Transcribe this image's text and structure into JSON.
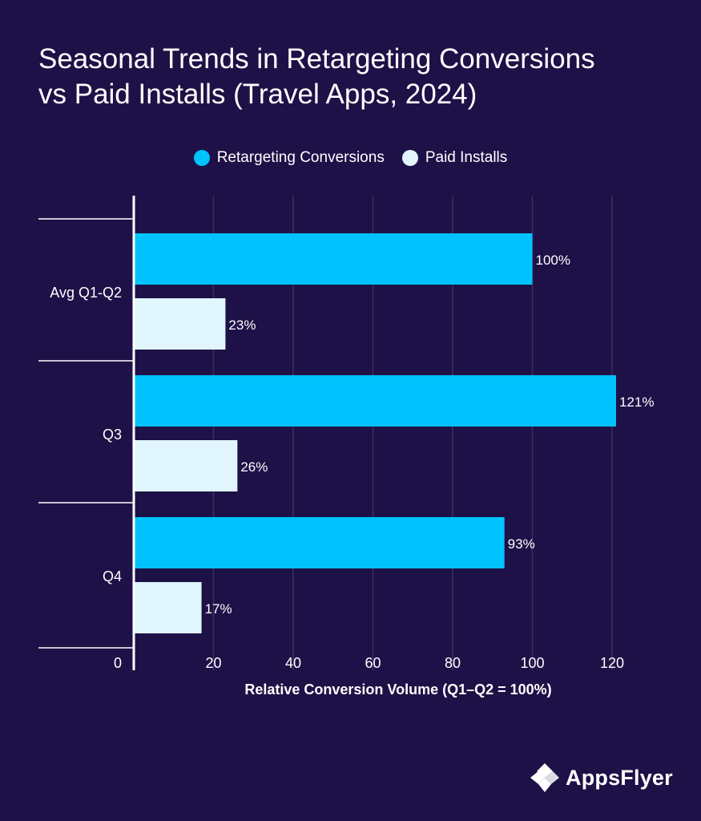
{
  "colors": {
    "background": "#1e1147",
    "grid": "#3a2f63",
    "axis": "#ffffff"
  },
  "chart_data": {
    "type": "bar",
    "orientation": "horizontal",
    "title_lines": [
      "Seasonal Trends in Retargeting Conversions",
      "vs Paid Installs (Travel Apps, 2024)"
    ],
    "categories": [
      "Avg Q1-Q2",
      "Q3",
      "Q4"
    ],
    "series": [
      {
        "name": "Retargeting Conversions",
        "color": "#00c2ff",
        "values": [
          100,
          121,
          93
        ],
        "labels": [
          "100%",
          "121%",
          "93%"
        ]
      },
      {
        "name": "Paid Installs",
        "color": "#e0f5fd",
        "values": [
          23,
          26,
          17
        ],
        "labels": [
          "23%",
          "26%",
          "17%"
        ]
      }
    ],
    "xlabel": "Relative Conversion Volume (Q1–Q2 = 100%)",
    "ylabel": "",
    "xlim": [
      0,
      125
    ],
    "xticks": [
      0,
      20,
      40,
      60,
      80,
      100,
      120
    ],
    "xtick_labels": [
      "0",
      "20",
      "40",
      "60",
      "80",
      "100",
      "120"
    ],
    "grid": true,
    "legend_position": "top-center"
  },
  "brand": {
    "name": "AppsFlyer"
  }
}
